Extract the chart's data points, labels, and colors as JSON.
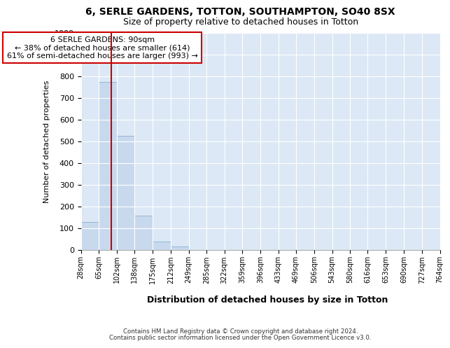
{
  "title_line1": "6, SERLE GARDENS, TOTTON, SOUTHAMPTON, SO40 8SX",
  "title_line2": "Size of property relative to detached houses in Totton",
  "xlabel": "Distribution of detached houses by size in Totton",
  "ylabel": "Number of detached properties",
  "footer_line1": "Contains HM Land Registry data © Crown copyright and database right 2024.",
  "footer_line2": "Contains public sector information licensed under the Open Government Licence v3.0.",
  "annotation_line1": "6 SERLE GARDENS: 90sqm",
  "annotation_line2": "← 38% of detached houses are smaller (614)",
  "annotation_line3": "61% of semi-detached houses are larger (993) →",
  "property_size": 90,
  "bar_edges": [
    28,
    65,
    102,
    138,
    175,
    212,
    249,
    285,
    322,
    359,
    396,
    433,
    469,
    506,
    543,
    580,
    616,
    653,
    690,
    727,
    764
  ],
  "bar_heights": [
    130,
    775,
    525,
    157,
    40,
    15,
    0,
    0,
    0,
    0,
    0,
    0,
    0,
    0,
    0,
    0,
    0,
    0,
    0,
    0
  ],
  "bar_color": "#c8d9ee",
  "bar_edgecolor": "#8ab0d4",
  "redline_color": "#cc0000",
  "background_color": "#dce8f5",
  "annotation_box_color": "#ffffff",
  "annotation_box_edgecolor": "#cc0000",
  "grid_color": "#ffffff",
  "ylim": [
    0,
    1000
  ],
  "yticks": [
    0,
    100,
    200,
    300,
    400,
    500,
    600,
    700,
    800,
    900,
    1000
  ]
}
